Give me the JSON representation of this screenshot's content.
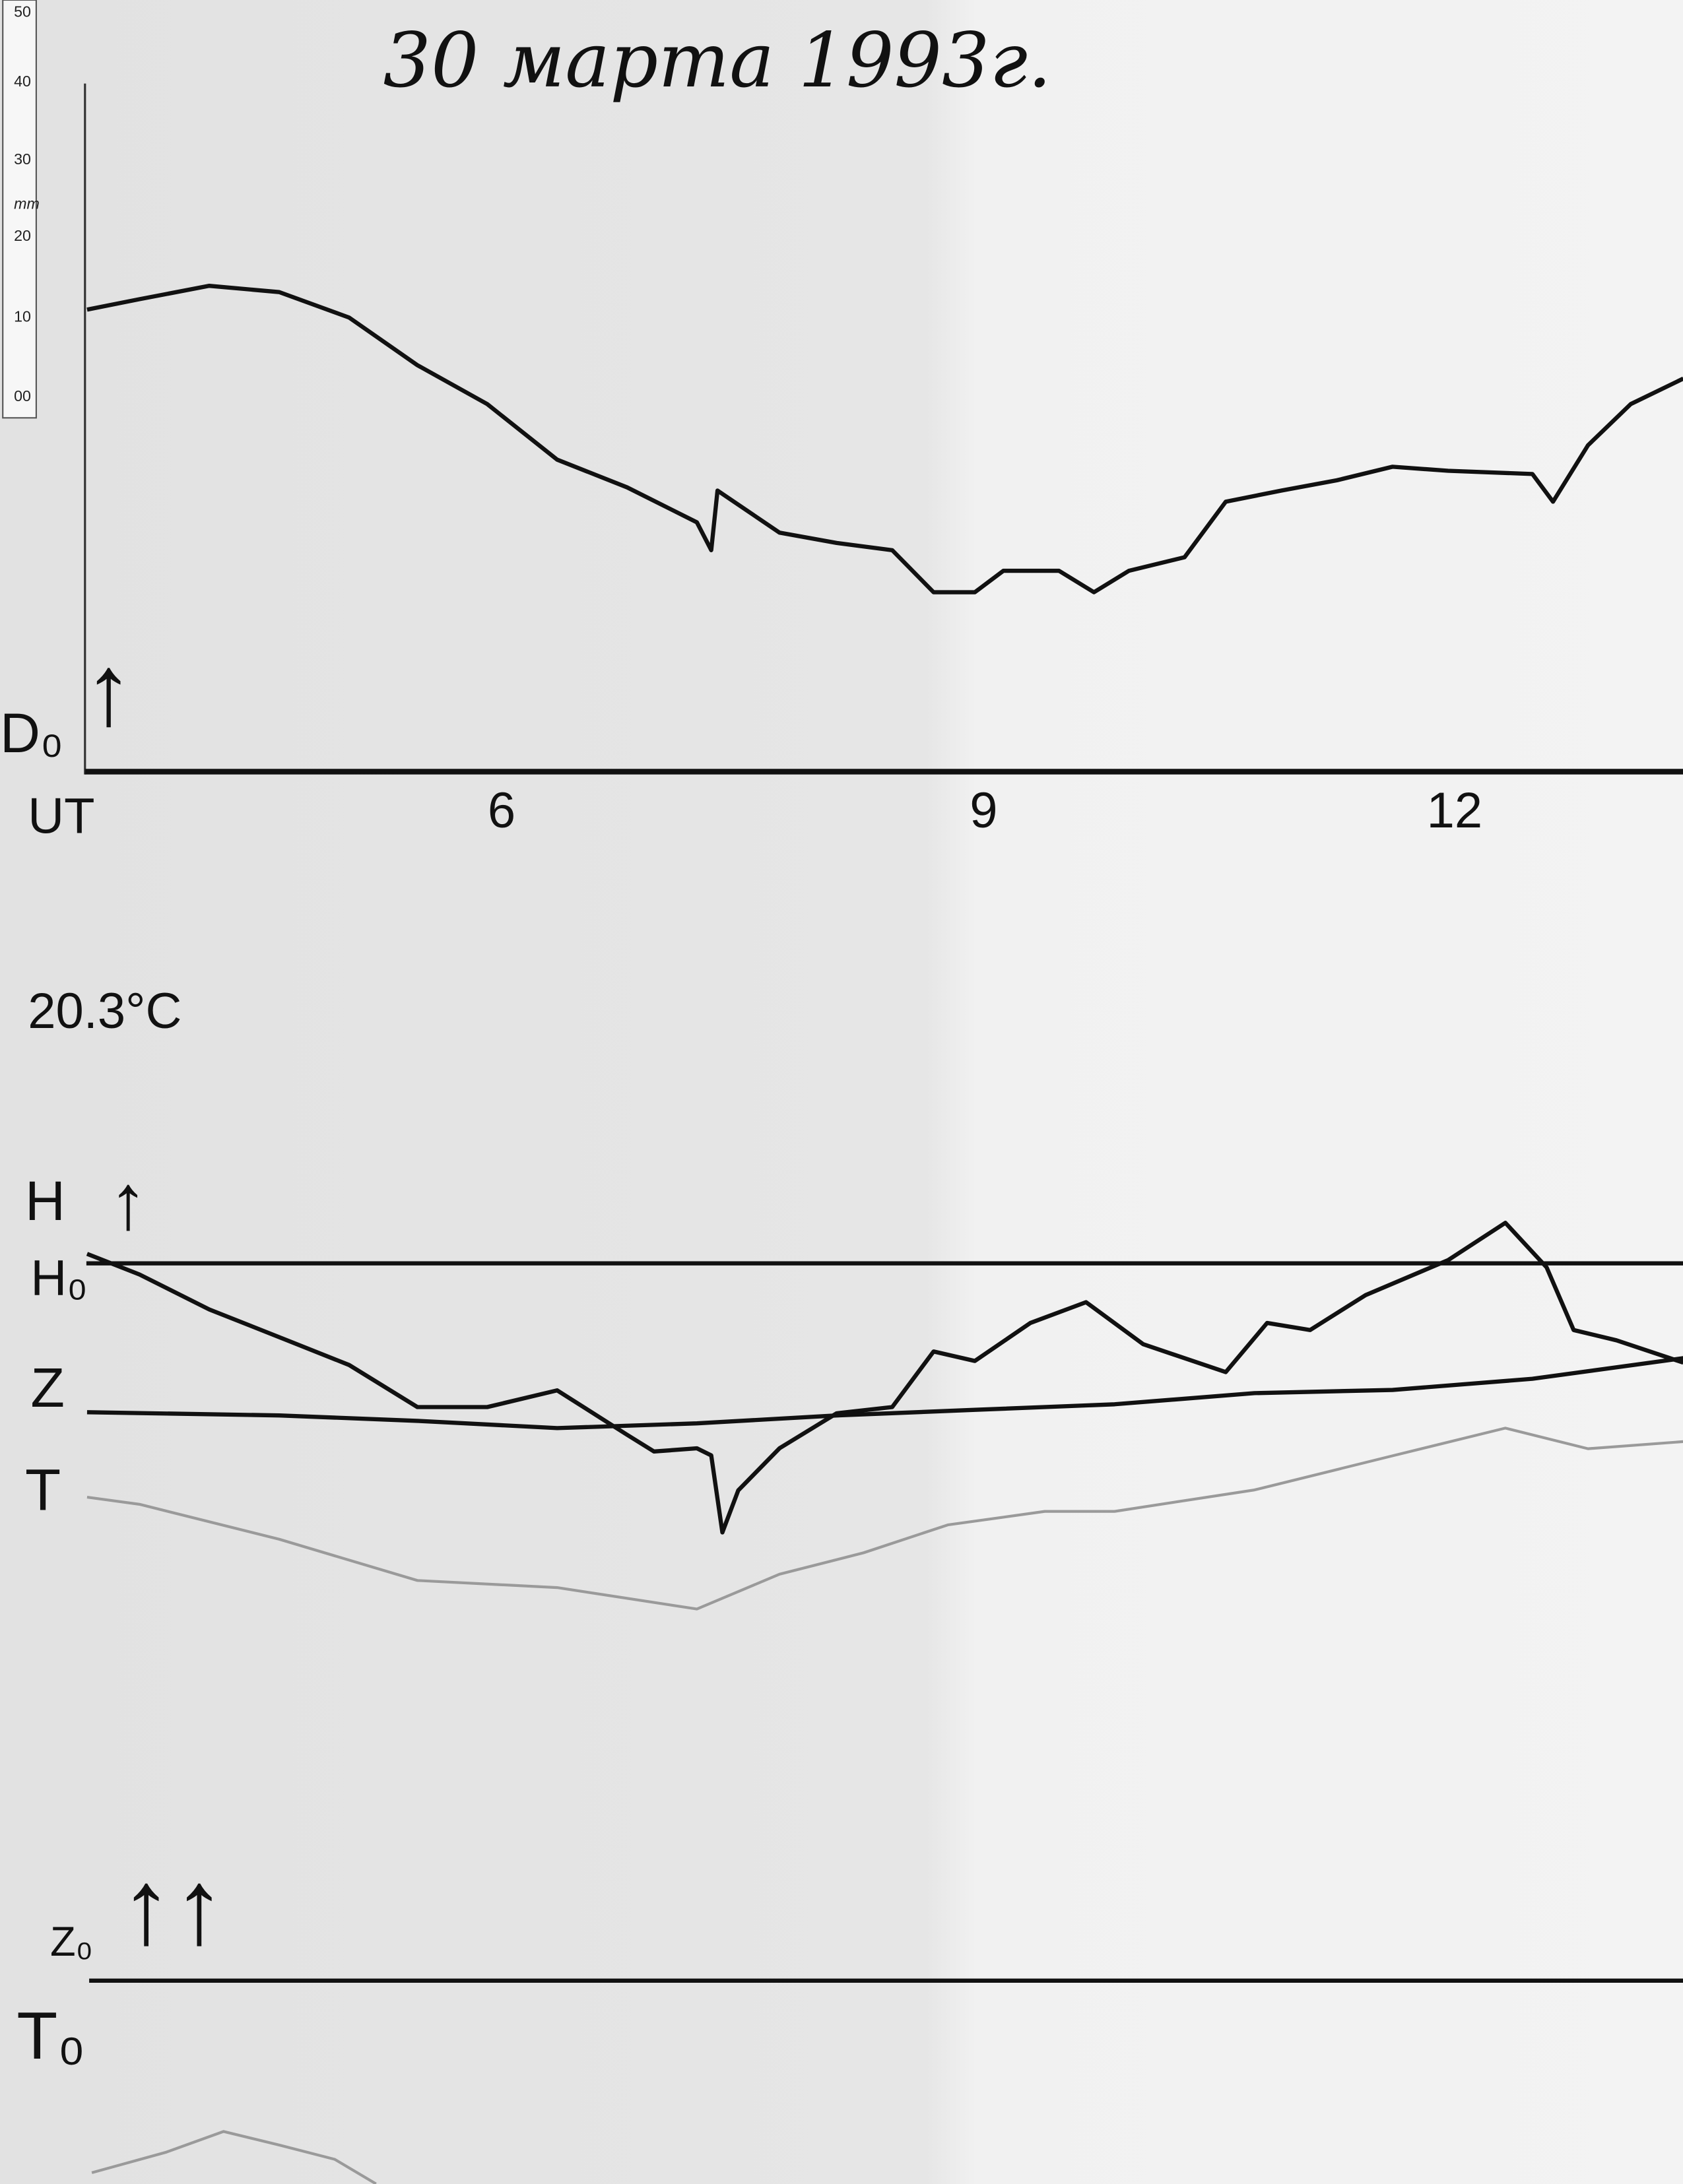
{
  "title": "30 марта 1993г.",
  "ruler": {
    "unit": "mm",
    "labels": [
      "50",
      "40",
      "30",
      "20",
      "10",
      "00"
    ]
  },
  "labels": {
    "d0": "D₀",
    "time_axis": "UT",
    "temperature": "20.3°C",
    "h": "H",
    "h0": "H₀",
    "z": "Z",
    "t": "T",
    "z0": "Z₀",
    "t0": "T₀",
    "arrow": "↑",
    "double_arrow": "↑↑"
  },
  "colors": {
    "paper": "#ececec",
    "trace": "#111111",
    "t_trace": "#9a9a9a"
  },
  "chart_data": {
    "type": "line",
    "title": "30 марта 1993г.",
    "xlabel": "UT",
    "x_ticks": [
      6,
      9,
      12
    ],
    "xlim": [
      3.4,
      13.45
    ],
    "y_unit": "mm from the trace's baseline (ruler scale)",
    "grid": false,
    "series": [
      {
        "name": "D",
        "baseline": "D₀",
        "color": "#111111",
        "x": [
          3.39,
          3.72,
          4.16,
          4.6,
          5.04,
          5.47,
          5.91,
          6.35,
          6.79,
          7.23,
          7.32,
          7.36,
          7.75,
          8.11,
          8.46,
          8.72,
          8.98,
          9.16,
          9.51,
          9.73,
          9.95,
          10.3,
          10.56,
          10.91,
          11.26,
          11.61,
          11.96,
          12.49,
          12.62,
          12.84,
          13.11,
          13.44
        ],
        "y": [
          58.2,
          59.5,
          61.2,
          60.4,
          57.2,
          51.2,
          46.3,
          39.3,
          35.8,
          31.4,
          27.9,
          35.4,
          30.1,
          28.8,
          27.9,
          22.6,
          22.6,
          25.3,
          25.3,
          22.6,
          25.3,
          27.0,
          34.0,
          35.4,
          36.7,
          38.4,
          37.9,
          37.5,
          34.0,
          41.1,
          46.3,
          49.5
        ]
      },
      {
        "name": "H",
        "baseline": "H₀",
        "color": "#111111",
        "x": [
          3.39,
          3.72,
          4.16,
          4.6,
          5.04,
          5.47,
          5.91,
          6.35,
          6.79,
          6.96,
          7.23,
          7.32,
          7.39,
          7.49,
          7.75,
          8.11,
          8.46,
          8.72,
          8.98,
          9.33,
          9.68,
          10.04,
          10.56,
          10.82,
          11.09,
          11.44,
          11.96,
          12.32,
          12.58,
          12.75,
          13.02,
          13.44
        ],
        "y": [
          1.2,
          -1.4,
          -5.8,
          -9.3,
          -12.8,
          -18.1,
          -18.1,
          -16.0,
          -21.6,
          -23.7,
          -23.3,
          -24.2,
          -33.9,
          -28.6,
          -23.3,
          -18.9,
          -18.1,
          -11.1,
          -12.3,
          -7.5,
          -4.9,
          -10.2,
          -13.7,
          -7.5,
          -8.4,
          -4.0,
          0.4,
          5.1,
          -0.5,
          -8.4,
          -9.7,
          -12.5
        ]
      },
      {
        "name": "Z",
        "baseline": "Z₀",
        "color": "#111111",
        "x": [
          3.39,
          4.6,
          5.47,
          6.35,
          7.23,
          8.11,
          8.98,
          9.86,
          10.74,
          11.61,
          12.49,
          13.44
        ],
        "y": [
          71.6,
          71.2,
          70.5,
          69.6,
          70.2,
          71.2,
          71.9,
          72.6,
          74.0,
          74.4,
          75.8,
          78.4
        ]
      },
      {
        "name": "T",
        "baseline": "T₀",
        "color": "#9a9a9a",
        "x": [
          3.39,
          3.72,
          4.6,
          5.47,
          6.35,
          7.23,
          7.75,
          8.28,
          8.81,
          9.42,
          9.86,
          10.74,
          11.61,
          12.32,
          12.84,
          13.44
        ],
        "y": [
          60.9,
          60.0,
          55.6,
          50.4,
          49.5,
          46.8,
          51.2,
          53.9,
          57.4,
          59.1,
          59.1,
          61.8,
          66.1,
          69.6,
          67.0,
          67.9
        ]
      },
      {
        "baseline": "T₀",
        "color": "#9a9a9a",
        "x": [
          3.42,
          3.89,
          4.25,
          4.6,
          4.95,
          5.21
        ],
        "y": [
          -24.2,
          -21.6,
          -19.0,
          -20.7,
          -22.5,
          -25.6
        ]
      }
    ]
  }
}
